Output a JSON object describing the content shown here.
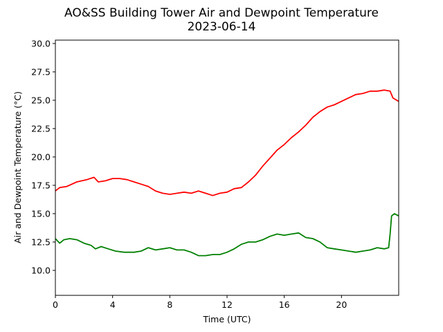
{
  "chart_data": {
    "type": "line",
    "title": "AO&SS Building Tower Air and Dewpoint Temperature",
    "subtitle": "2023-06-14",
    "xlabel": "Time (UTC)",
    "ylabel": "Air and Dewpoint Temperature (°C)",
    "xlim": [
      0,
      24
    ],
    "ylim": [
      7.8,
      30.3
    ],
    "xticks": [
      0,
      4,
      8,
      12,
      16,
      20
    ],
    "xtick_labels": [
      "0",
      "4",
      "8",
      "12",
      "16",
      "20"
    ],
    "yticks": [
      10.0,
      12.5,
      15.0,
      17.5,
      20.0,
      22.5,
      25.0,
      27.5,
      30.0
    ],
    "ytick_labels": [
      "10.0",
      "12.5",
      "15.0",
      "17.5",
      "20.0",
      "22.5",
      "25.0",
      "27.5",
      "30.0"
    ],
    "grid": false,
    "series": [
      {
        "color": "#ff0000",
        "x": [
          0,
          0.3,
          0.8,
          1.5,
          2.2,
          2.7,
          3.0,
          3.5,
          4.0,
          4.5,
          5.0,
          5.5,
          6.0,
          6.5,
          7.0,
          7.5,
          8.0,
          8.5,
          9.0,
          9.5,
          10.0,
          10.5,
          11.0,
          11.5,
          12.0,
          12.5,
          13.0,
          13.5,
          14.0,
          14.5,
          15.0,
          15.5,
          16.0,
          16.5,
          17.0,
          17.5,
          18.0,
          18.5,
          19.0,
          19.5,
          20.0,
          20.5,
          21.0,
          21.5,
          22.0,
          22.5,
          23.0,
          23.4,
          23.6,
          24.0
        ],
        "y": [
          17.0,
          17.3,
          17.4,
          17.8,
          18.0,
          18.2,
          17.8,
          17.9,
          18.1,
          18.1,
          18.0,
          17.8,
          17.6,
          17.4,
          17.0,
          16.8,
          16.7,
          16.8,
          16.9,
          16.8,
          17.0,
          16.8,
          16.6,
          16.8,
          16.9,
          17.2,
          17.3,
          17.8,
          18.4,
          19.2,
          19.9,
          20.6,
          21.1,
          21.7,
          22.2,
          22.8,
          23.5,
          24.0,
          24.4,
          24.6,
          24.9,
          25.2,
          25.5,
          25.6,
          25.8,
          25.8,
          25.9,
          25.8,
          25.2,
          24.9
        ]
      },
      {
        "color": "#008000",
        "x": [
          0,
          0.3,
          0.6,
          1.0,
          1.5,
          2.0,
          2.5,
          2.8,
          3.2,
          3.7,
          4.2,
          4.8,
          5.5,
          6.0,
          6.5,
          7.0,
          7.5,
          8.0,
          8.5,
          9.0,
          9.5,
          10.0,
          10.5,
          11.0,
          11.5,
          12.0,
          12.5,
          13.0,
          13.5,
          14.0,
          14.5,
          15.0,
          15.5,
          16.0,
          16.5,
          17.0,
          17.5,
          18.0,
          18.5,
          19.0,
          19.5,
          20.0,
          20.5,
          21.0,
          21.5,
          22.0,
          22.5,
          23.0,
          23.3,
          23.4,
          23.5,
          23.7,
          24.0
        ],
        "y": [
          12.8,
          12.4,
          12.7,
          12.8,
          12.7,
          12.4,
          12.2,
          11.9,
          12.1,
          11.9,
          11.7,
          11.6,
          11.6,
          11.7,
          12.0,
          11.8,
          11.9,
          12.0,
          11.8,
          11.8,
          11.6,
          11.3,
          11.3,
          11.4,
          11.4,
          11.6,
          11.9,
          12.3,
          12.5,
          12.5,
          12.7,
          13.0,
          13.2,
          13.1,
          13.2,
          13.3,
          12.9,
          12.8,
          12.5,
          12.0,
          11.9,
          11.8,
          11.7,
          11.6,
          11.7,
          11.8,
          12.0,
          11.9,
          12.0,
          13.2,
          14.8,
          15.0,
          14.8
        ]
      }
    ]
  }
}
